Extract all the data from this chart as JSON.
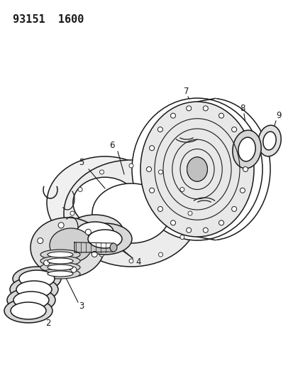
{
  "title": "93151  1600",
  "background_color": "#ffffff",
  "line_color": "#1a1a1a",
  "title_fontsize": 11,
  "label_fontsize": 8.5,
  "fig_w": 4.14,
  "fig_h": 5.33,
  "dpi": 100
}
